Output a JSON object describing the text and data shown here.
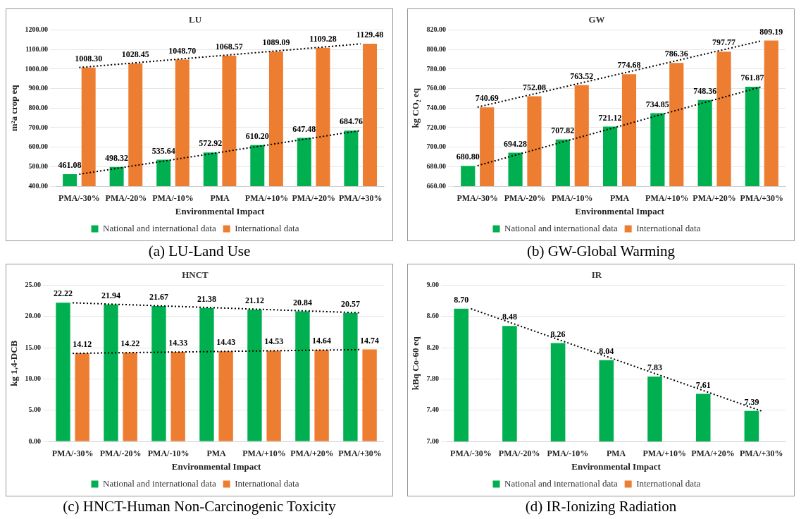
{
  "chart_data": [
    {
      "type": "bar",
      "title": "LU",
      "xlabel": "Environmental Impact",
      "ylabel": "m²a crop eq",
      "categories": [
        "PMA/-30%",
        "PMA/-20%",
        "PMA/-10%",
        "PMA",
        "PMA/+10%",
        "PMA/+20%",
        "PMA/+30%"
      ],
      "series": [
        {
          "name": "National and international data",
          "color": "#00b050",
          "values": [
            461.08,
            498.32,
            535.64,
            572.92,
            610.2,
            647.48,
            684.76
          ],
          "value_labels": [
            "461.08",
            "498.32",
            "535.64",
            "572.92",
            "610.20",
            "647.48",
            "684.76"
          ]
        },
        {
          "name": "International data",
          "color": "#ed7d31",
          "values": [
            1008.3,
            1028.45,
            1048.7,
            1068.57,
            1089.09,
            1109.28,
            1129.48
          ],
          "value_labels": [
            "1008.30",
            "1028.45",
            "1048.70",
            "1068.57",
            "1089.09",
            "1109.28",
            "1129.48"
          ]
        },
        {
          "type": "line",
          "line_style": "dotted",
          "color": "#000000",
          "values": [
            461,
            null,
            null,
            null,
            null,
            null,
            685
          ]
        },
        {
          "type": "line",
          "line_style": "dotted",
          "color": "#000000",
          "values": [
            1008,
            null,
            null,
            null,
            null,
            null,
            1129
          ]
        }
      ],
      "ylim": [
        400,
        1200
      ],
      "yticks": [
        {
          "value": 400,
          "label": "400.00"
        },
        {
          "value": 500,
          "label": "500.00"
        },
        {
          "value": 600,
          "label": "600.00"
        },
        {
          "value": 700,
          "label": "700.00"
        },
        {
          "value": 800,
          "label": "800.00"
        },
        {
          "value": 900,
          "label": "900.00"
        },
        {
          "value": 1000,
          "label": "1000.00"
        },
        {
          "value": 1100,
          "label": "1100.00"
        },
        {
          "value": 1200,
          "label": "1200.00"
        }
      ],
      "grid": "y",
      "legend": "bottom",
      "annotations": [
        "(a) LU-Land Use"
      ]
    },
    {
      "type": "bar",
      "title": "GW",
      "xlabel": "Environmental Impact",
      "ylabel": "kg CO₂ eq",
      "categories": [
        "PMA/-30%",
        "PMA/-20%",
        "PMA/-10%",
        "PMA",
        "PMA/+10%",
        "PMA/+20%",
        "PMA/+30%"
      ],
      "series": [
        {
          "name": "National and international data",
          "color": "#00b050",
          "values": [
            680.8,
            694.28,
            707.82,
            721.12,
            734.85,
            748.36,
            761.87
          ],
          "value_labels": [
            "680.80",
            "694.28",
            "707.82",
            "721.12",
            "734.85",
            "748.36",
            "761.87"
          ]
        },
        {
          "name": "International data",
          "color": "#ed7d31",
          "values": [
            740.69,
            752.08,
            763.52,
            774.68,
            786.36,
            797.77,
            809.19
          ],
          "value_labels": [
            "740.69",
            "752.08",
            "763.52",
            "774.68",
            "786.36",
            "797.77",
            "809.19"
          ]
        },
        {
          "type": "line",
          "line_style": "dotted",
          "color": "#000000",
          "values": [
            681,
            null,
            null,
            null,
            null,
            null,
            762
          ]
        },
        {
          "type": "line",
          "line_style": "dotted",
          "color": "#000000",
          "values": [
            741,
            null,
            null,
            null,
            null,
            null,
            809
          ]
        }
      ],
      "ylim": [
        660,
        820
      ],
      "yticks": [
        {
          "value": 660,
          "label": "660.00"
        },
        {
          "value": 680,
          "label": "680.00"
        },
        {
          "value": 700,
          "label": "700.00"
        },
        {
          "value": 720,
          "label": "720.00"
        },
        {
          "value": 740,
          "label": "740.00"
        },
        {
          "value": 760,
          "label": "760.00"
        },
        {
          "value": 780,
          "label": "780.00"
        },
        {
          "value": 800,
          "label": "800.00"
        },
        {
          "value": 820,
          "label": "820.00"
        }
      ],
      "grid": "y",
      "legend": "bottom",
      "annotations": [
        "(b) GW-Global Warming"
      ]
    },
    {
      "type": "bar",
      "title": "HNCT",
      "xlabel": "Environmental Impact",
      "ylabel": "kg 1,4-DCB",
      "categories": [
        "PMA/-30%",
        "PMA/-20%",
        "PMA/-10%",
        "PMA",
        "PMA/+10%",
        "PMA/+20%",
        "PMA/+30%"
      ],
      "series": [
        {
          "name": "National and international data",
          "color": "#00b050",
          "values": [
            22.22,
            21.94,
            21.67,
            21.38,
            21.12,
            20.84,
            20.57
          ],
          "value_labels": [
            "22.22",
            "21.94",
            "21.67",
            "21.38",
            "21.12",
            "20.84",
            "20.57"
          ]
        },
        {
          "name": "International data",
          "color": "#ed7d31",
          "values": [
            14.12,
            14.22,
            14.33,
            14.43,
            14.53,
            14.64,
            14.74
          ],
          "value_labels": [
            "14.12",
            "14.22",
            "14.33",
            "14.43",
            "14.53",
            "14.64",
            "14.74"
          ]
        },
        {
          "type": "line",
          "line_style": "dotted",
          "color": "#000000",
          "values": [
            22.2,
            null,
            null,
            null,
            null,
            null,
            20.6
          ]
        },
        {
          "type": "line",
          "line_style": "dotted",
          "color": "#000000",
          "values": [
            14.1,
            null,
            null,
            null,
            null,
            null,
            14.7
          ]
        }
      ],
      "ylim": [
        0,
        25
      ],
      "yticks": [
        {
          "value": 0,
          "label": "0.00"
        },
        {
          "value": 5,
          "label": "5.00"
        },
        {
          "value": 10,
          "label": "10.00"
        },
        {
          "value": 15,
          "label": "15.00"
        },
        {
          "value": 20,
          "label": "20.00"
        },
        {
          "value": 25,
          "label": "25.00"
        }
      ],
      "grid": "y",
      "legend": "bottom",
      "annotations": [
        "(c) HNCT-Human Non-Carcinogenic Toxicity"
      ]
    },
    {
      "type": "bar",
      "title": "IR",
      "xlabel": "Environmental Impact",
      "ylabel": "kBq Co-60 eq",
      "categories": [
        "PMA/-30%",
        "PMA/-20%",
        "PMA/-10%",
        "PMA",
        "PMA/+10%",
        "PMA/+20%",
        "PMA/+30%"
      ],
      "series": [
        {
          "name": "National and international data",
          "color": "#00b050",
          "values": [
            8.7,
            8.48,
            8.26,
            8.04,
            7.83,
            7.61,
            7.39
          ],
          "value_labels": [
            "8.70",
            "8.48",
            "8.26",
            "8.04",
            "7.83",
            "7.61",
            "7.39"
          ]
        },
        {
          "name": "International data",
          "color": "#ed7d31",
          "values": [
            null,
            null,
            null,
            null,
            null,
            null,
            null
          ]
        },
        {
          "type": "line",
          "line_style": "dotted",
          "color": "#000000",
          "values": [
            8.7,
            null,
            null,
            null,
            null,
            null,
            7.39
          ]
        }
      ],
      "ylim": [
        7,
        9
      ],
      "yticks": [
        {
          "value": 7,
          "label": "7.00"
        },
        {
          "value": 7.4,
          "label": "7.40"
        },
        {
          "value": 7.8,
          "label": "7.80"
        },
        {
          "value": 8.2,
          "label": "8.20"
        },
        {
          "value": 8.6,
          "label": "8.60"
        },
        {
          "value": 9,
          "label": "9.00"
        }
      ],
      "grid": "y",
      "legend": "bottom",
      "annotations": [
        "(d) IR-Ionizing Radiation"
      ]
    }
  ]
}
